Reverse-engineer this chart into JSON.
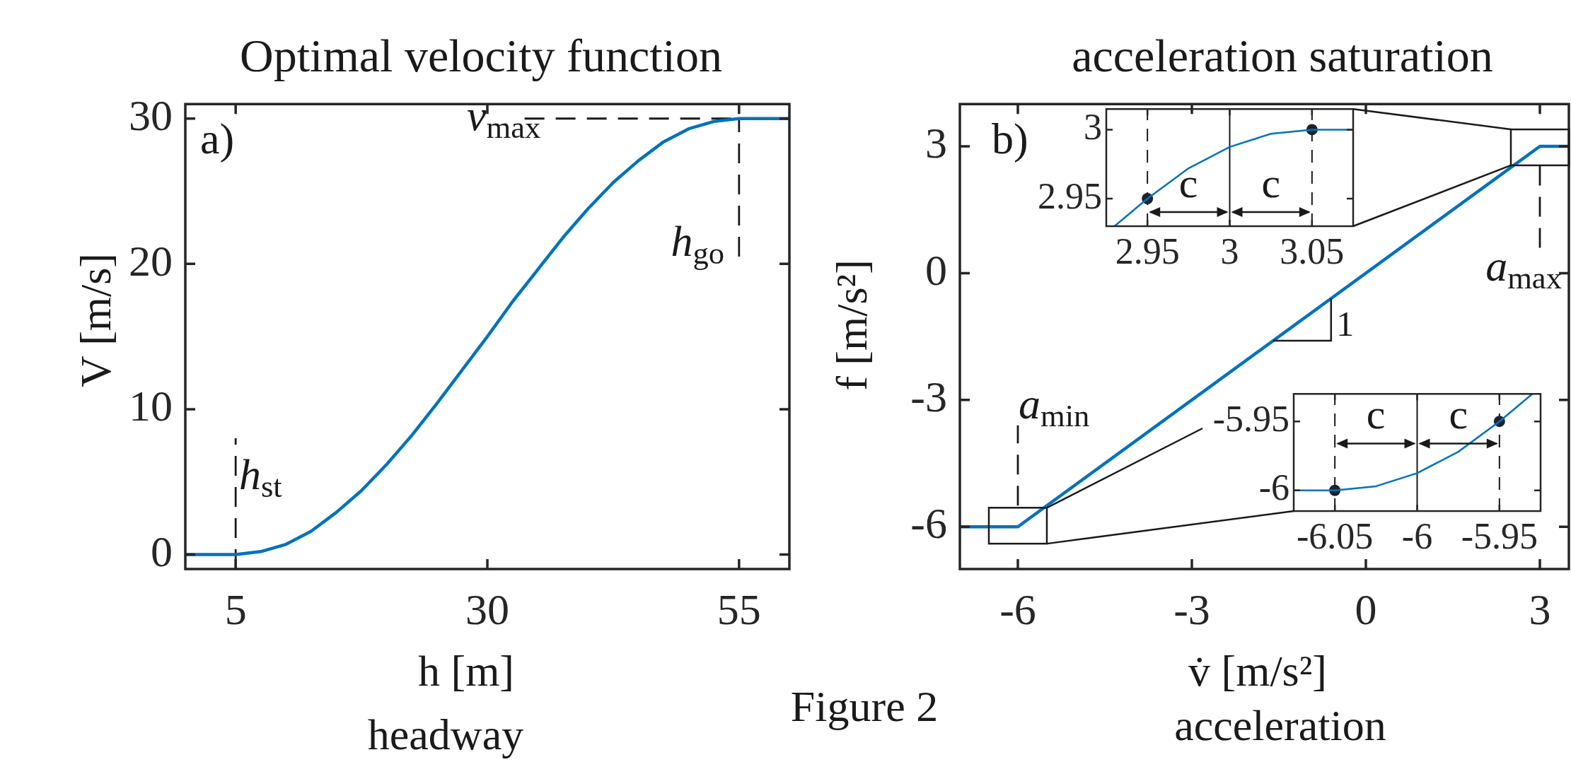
{
  "chart_data": [
    {
      "type": "line",
      "title": "Optimal velocity function",
      "xlabel": "h [m]",
      "ylabel": "V [m/s]",
      "annotations": [
        "a)",
        "headway",
        "Figure 2"
      ],
      "x": [
        0,
        5,
        7.5,
        10,
        12.5,
        15,
        17.5,
        20,
        22.5,
        25,
        27.5,
        30,
        32.5,
        35,
        37.5,
        40,
        42.5,
        45,
        47.5,
        50,
        52.5,
        55,
        60
      ],
      "series": [
        {
          "color": "#0072bd",
          "values": [
            0,
            0,
            0.2,
            0.7,
            1.6,
            2.9,
            4.4,
            6.2,
            8.2,
            10.4,
            12.7,
            15,
            17.4,
            19.6,
            21.8,
            23.8,
            25.6,
            27.1,
            28.4,
            29.3,
            29.8,
            30,
            30
          ]
        }
      ],
      "xlim": [
        0,
        60
      ],
      "ylim": [
        -1,
        31
      ],
      "xticks": [
        5,
        30,
        55
      ],
      "yticks": [
        0,
        10,
        20,
        30
      ],
      "ref_lines": [
        {
          "axis": "x",
          "value": 5,
          "label": "h$_{st}$",
          "line_style": "dashed"
        },
        {
          "axis": "x",
          "value": 55,
          "label": "h$_{go}$",
          "line_style": "dashed"
        },
        {
          "axis": "y",
          "value": 30,
          "label": "v$_{max}$",
          "line_style": "dashed"
        }
      ]
    },
    {
      "type": "line",
      "title": "acceleration saturation",
      "xlabel": "v̇  [m/s²]",
      "ylabel": "f [m/s²]",
      "annotations": [
        "b)",
        {
          "text": "1",
          "x": -0.6,
          "y": -0.6
        },
        "acceleration"
      ],
      "x": [
        -7,
        -6,
        3,
        3.5
      ],
      "series": [
        {
          "color": "#0072bd",
          "values": [
            -6,
            -6,
            3,
            3
          ]
        }
      ],
      "xlim": [
        -7,
        3.5
      ],
      "ylim": [
        -7,
        4
      ],
      "xticks": [
        -6,
        -3,
        0,
        3
      ],
      "yticks": [
        -6,
        -3,
        0,
        3
      ],
      "ref_lines": [
        {
          "axis": "x",
          "value": -6,
          "label": "a$_{min}$",
          "line_style": "dashed"
        },
        {
          "axis": "x",
          "value": 3,
          "label": "a$_{max}$",
          "line_style": "dashed"
        }
      ]
    },
    {
      "type": "line",
      "x": [
        2.93,
        2.95,
        2.975,
        3,
        3.025,
        3.05,
        3.075
      ],
      "series": [
        {
          "color": "#0072bd",
          "values": [
            2.93,
            2.95,
            2.972,
            2.9875,
            2.997,
            3,
            3
          ]
        },
        {
          "type": "scatter",
          "marker": "circle",
          "color": "#1a2430",
          "x": [
            2.95,
            3.05
          ],
          "values": [
            2.95,
            3
          ]
        }
      ],
      "xlim": [
        2.925,
        3.075
      ],
      "ylim": [
        2.93,
        3.015
      ],
      "xticks": [
        2.95,
        3,
        3.05
      ],
      "yticks": [
        2.95,
        3
      ],
      "ref_lines": [
        {
          "axis": "x",
          "value": 2.95,
          "line_style": "dashed"
        },
        {
          "axis": "x",
          "value": 3,
          "line_style": "solid"
        },
        {
          "axis": "x",
          "value": 3.05,
          "line_style": "dashed"
        }
      ],
      "annotations": [
        {
          "text": "c",
          "x": 2.95,
          "y": 2.9403
        },
        {
          "text": "c",
          "x": 3.05,
          "y": 2.9403
        }
      ]
    },
    {
      "type": "line",
      "x": [
        -6.075,
        -6.05,
        -6.025,
        -6,
        -5.975,
        -5.95,
        -5.93
      ],
      "series": [
        {
          "color": "#0072bd",
          "values": [
            -6,
            -6,
            -5.997,
            -5.9875,
            -5.972,
            -5.95,
            -5.93
          ]
        },
        {
          "type": "scatter",
          "marker": "circle",
          "color": "#1a2430",
          "x": [
            -6.05,
            -5.95
          ],
          "values": [
            -6,
            -5.95
          ]
        }
      ],
      "xlim": [
        -6.075,
        -5.925
      ],
      "ylim": [
        -6.015,
        -5.93
      ],
      "xticks": [
        -6.05,
        -6,
        -5.95
      ],
      "yticks": [
        -6,
        -5.95
      ],
      "ref_lines": [
        {
          "axis": "x",
          "value": -6.05,
          "line_style": "dashed"
        },
        {
          "axis": "x",
          "value": -6,
          "line_style": "solid"
        },
        {
          "axis": "x",
          "value": -5.95,
          "line_style": "dashed"
        }
      ],
      "annotations": [
        {
          "text": "c",
          "x": -6.05,
          "y": -5.966
        },
        {
          "text": "c",
          "x": -5.95,
          "y": -5.966
        }
      ]
    }
  ]
}
